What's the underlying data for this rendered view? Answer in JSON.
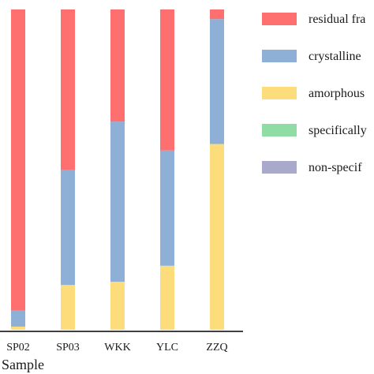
{
  "chart_data": {
    "type": "bar",
    "stacked": true,
    "orientation": "vertical",
    "categories": [
      "SP02",
      "SP03",
      "WKK",
      "YLC",
      "ZZQ"
    ],
    "xlabel": "Sample",
    "ylabel": "",
    "ylim": [
      0,
      100
    ],
    "grid": false,
    "legend_position": "right",
    "series": [
      {
        "name": "non-specif",
        "color": "#a9a9cc",
        "values": [
          0,
          0,
          0,
          0,
          0
        ]
      },
      {
        "name": "specifically",
        "color": "#8fdca4",
        "values": [
          0,
          0,
          0,
          0,
          0
        ]
      },
      {
        "name": "amorphous",
        "color": "#fddc7c",
        "values": [
          1,
          14,
          15,
          20,
          58
        ]
      },
      {
        "name": "crystalline",
        "color": "#8fb0d6",
        "values": [
          5,
          36,
          50,
          36,
          39
        ]
      },
      {
        "name": "residual fra",
        "color": "#fe6f6f",
        "values": [
          94,
          50,
          35,
          44,
          3
        ]
      }
    ],
    "legend_order": [
      "residual fra",
      "crystalline",
      "amorphous",
      "specifically",
      "non-specif"
    ]
  }
}
